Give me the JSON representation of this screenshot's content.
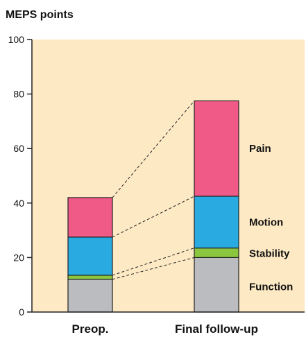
{
  "chart_data": {
    "type": "bar",
    "stacked": true,
    "ylabel": "MEPS points",
    "xlabel": "",
    "ylim": [
      0,
      100
    ],
    "yticks": [
      0,
      20,
      40,
      60,
      80,
      100
    ],
    "categories": [
      "Preop.",
      "Final follow-up"
    ],
    "series": [
      {
        "name": "Function",
        "values": [
          12,
          20
        ],
        "color": "#bbbcc0"
      },
      {
        "name": "Stability",
        "values": [
          1.5,
          3.5
        ],
        "color": "#8cc63f"
      },
      {
        "name": "Motion",
        "values": [
          14,
          19
        ],
        "color": "#29abe2"
      },
      {
        "name": "Pain",
        "values": [
          14.5,
          35
        ],
        "color": "#f05a87"
      }
    ],
    "plot_background": "#fde9c4",
    "connector_lines": "dashed",
    "grid": false
  }
}
